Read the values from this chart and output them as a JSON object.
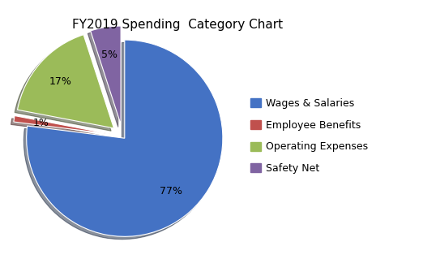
{
  "title": "FY2019 Spending  Category Chart",
  "labels": [
    "Wages & Salaries",
    "Employee Benefits",
    "Operating Expenses",
    "Safety Net"
  ],
  "values": [
    77,
    1,
    17,
    5
  ],
  "colors": [
    "#4472C4",
    "#C0504D",
    "#9BBB59",
    "#8064A2"
  ],
  "explode": [
    0.03,
    0.12,
    0.12,
    0.12
  ],
  "legend_labels": [
    "Wages & Salaries",
    "Employee Benefits",
    "Operating Expenses",
    "Safety Net"
  ],
  "startangle": 90,
  "title_fontsize": 11,
  "background_color": "#ffffff",
  "pctdistance": 0.72,
  "legend_fontsize": 9
}
